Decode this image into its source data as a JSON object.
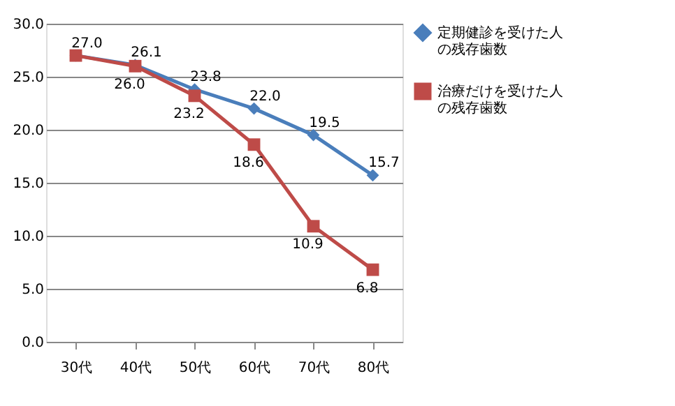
{
  "chart_data": {
    "type": "line",
    "categories": [
      "30代",
      "40代",
      "50代",
      "60代",
      "70代",
      "80代"
    ],
    "series": [
      {
        "name": "定期健診を受けた人の残存歯数",
        "color": "#4a7ebb",
        "marker": "diamond",
        "values": [
          27.0,
          26.1,
          23.8,
          22.0,
          19.5,
          15.7
        ],
        "value_labels": [
          "27.0",
          "26.1",
          "23.8",
          "22.0",
          "19.5",
          "15.7"
        ]
      },
      {
        "name": "治療だけを受けた人の残存歯数",
        "color": "#be4b48",
        "marker": "square",
        "values": [
          27.0,
          26.0,
          23.2,
          18.6,
          10.9,
          6.8
        ],
        "value_labels": [
          null,
          "26.0",
          "23.2",
          "18.6",
          "10.9",
          "6.8"
        ]
      }
    ],
    "ylim": [
      0,
      30
    ],
    "yticks": [
      {
        "value": 0,
        "label": "0.0"
      },
      {
        "value": 5,
        "label": "5.0"
      },
      {
        "value": 10,
        "label": "10.0"
      },
      {
        "value": 15,
        "label": "15.0"
      },
      {
        "value": 20,
        "label": "20.0"
      },
      {
        "value": 25,
        "label": "25.0"
      },
      {
        "value": 30,
        "label": "30.0"
      }
    ],
    "grid": "y",
    "legend": "right",
    "line_style": "solid"
  }
}
